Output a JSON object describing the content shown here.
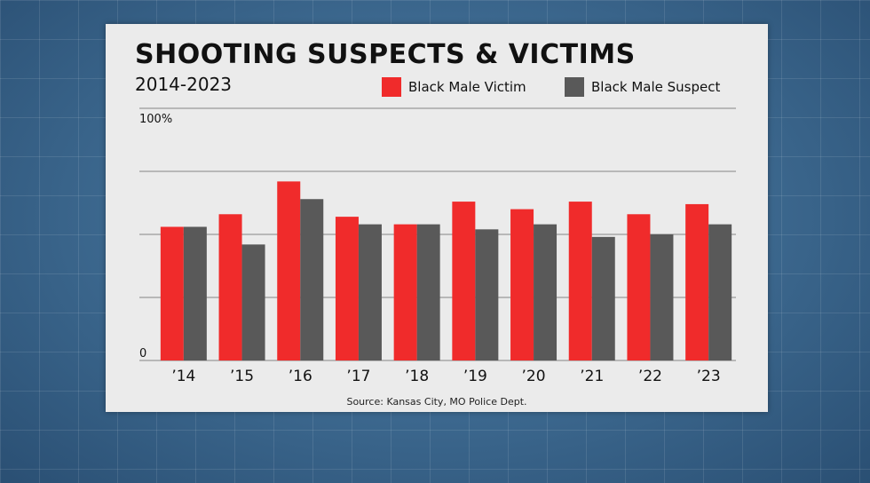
{
  "chart_data": {
    "type": "bar",
    "title": "SHOOTING SUSPECTS & VICTIMS",
    "subtitle": "2014-2023",
    "source": "Source: Kansas City, MO Police Dept.",
    "categories": [
      "’14",
      "’15",
      "’16",
      "’17",
      "’18",
      "’19",
      "’20",
      "’21",
      "’22",
      "’23"
    ],
    "series": [
      {
        "name": "Black Male Victim",
        "color": "#f02b2b",
        "values": [
          53,
          58,
          71,
          57,
          54,
          63,
          60,
          63,
          58,
          62
        ]
      },
      {
        "name": "Black Male Suspect",
        "color": "#595959",
        "values": [
          53,
          46,
          64,
          54,
          54,
          52,
          54,
          49,
          50,
          54
        ]
      }
    ],
    "ylim": [
      0,
      100
    ],
    "y_tick_labels": [
      "0",
      "100%"
    ],
    "grid": true,
    "legend_position": "top-right"
  }
}
